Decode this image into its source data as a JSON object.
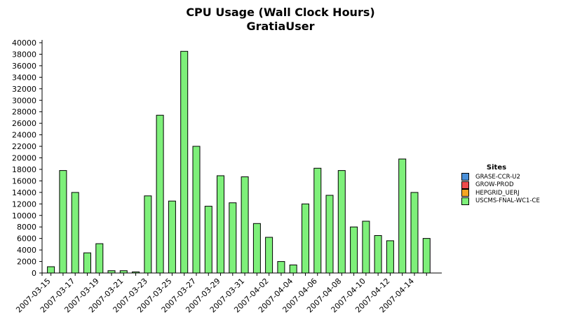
{
  "chart_data": {
    "type": "bar",
    "title": "CPU Usage (Wall Clock Hours)",
    "subtitle": "GratiaUser",
    "xlabel": "",
    "ylabel": "",
    "ylim": [
      0,
      40000
    ],
    "yticks": [
      0,
      2000,
      4000,
      6000,
      8000,
      10000,
      12000,
      14000,
      16000,
      18000,
      20000,
      22000,
      24000,
      26000,
      28000,
      30000,
      32000,
      34000,
      36000,
      38000,
      40000
    ],
    "stacked": true,
    "grid": false,
    "legend_title": "Sites",
    "legend_position": "right",
    "categories": [
      "2007-03-15",
      "2007-03-16",
      "2007-03-17",
      "2007-03-18",
      "2007-03-19",
      "2007-03-20",
      "2007-03-21",
      "2007-03-22",
      "2007-03-23",
      "2007-03-24",
      "2007-03-25",
      "2007-03-26",
      "2007-03-27",
      "2007-03-28",
      "2007-03-29",
      "2007-03-30",
      "2007-03-31",
      "2007-04-01",
      "2007-04-02",
      "2007-04-03",
      "2007-04-04",
      "2007-04-05",
      "2007-04-06",
      "2007-04-07",
      "2007-04-08",
      "2007-04-09",
      "2007-04-10",
      "2007-04-11",
      "2007-04-12",
      "2007-04-13",
      "2007-04-14",
      "2007-04-15"
    ],
    "tick_labels": [
      "2007-03-15",
      "2007-03-17",
      "2007-03-19",
      "2007-03-21",
      "2007-03-23",
      "2007-03-25",
      "2007-03-27",
      "2007-03-29",
      "2007-03-31",
      "2007-04-02",
      "2007-04-04",
      "2007-04-06",
      "2007-04-08",
      "2007-04-10",
      "2007-04-12",
      "2007-04-14"
    ],
    "series": [
      {
        "name": "GRASE-CCR-U2",
        "color": "#4a90d9",
        "values": [
          0,
          0,
          0,
          0,
          0,
          0,
          0,
          0,
          0,
          0,
          0,
          0,
          0,
          0,
          0,
          0,
          0,
          0,
          0,
          0,
          0,
          0,
          0,
          0,
          0,
          0,
          0,
          0,
          0,
          0,
          0,
          0
        ]
      },
      {
        "name": "GROW-PROD",
        "color": "#f04b4b",
        "values": [
          0,
          0,
          0,
          0,
          0,
          0,
          0,
          0,
          0,
          0,
          0,
          0,
          0,
          0,
          0,
          0,
          0,
          0,
          0,
          0,
          0,
          0,
          0,
          0,
          0,
          0,
          0,
          0,
          0,
          0,
          0,
          0
        ]
      },
      {
        "name": "HEPGRID_UERJ",
        "color": "#f5a623",
        "values": [
          0,
          0,
          0,
          0,
          0,
          0,
          0,
          0,
          0,
          0,
          0,
          0,
          0,
          0,
          0,
          0,
          0,
          0,
          0,
          0,
          0,
          0,
          0,
          0,
          0,
          0,
          0,
          0,
          0,
          0,
          0,
          0
        ]
      },
      {
        "name": "USCMS-FNAL-WC1-CE",
        "color": "#7ef07a",
        "values": [
          1100,
          17800,
          14000,
          3500,
          5100,
          400,
          400,
          200,
          13400,
          27400,
          12500,
          38500,
          22000,
          11600,
          16900,
          12200,
          16700,
          8600,
          6200,
          2000,
          1400,
          12000,
          18200,
          13500,
          17800,
          8000,
          9000,
          6500,
          5600,
          19800,
          14000,
          6000
        ]
      }
    ]
  }
}
